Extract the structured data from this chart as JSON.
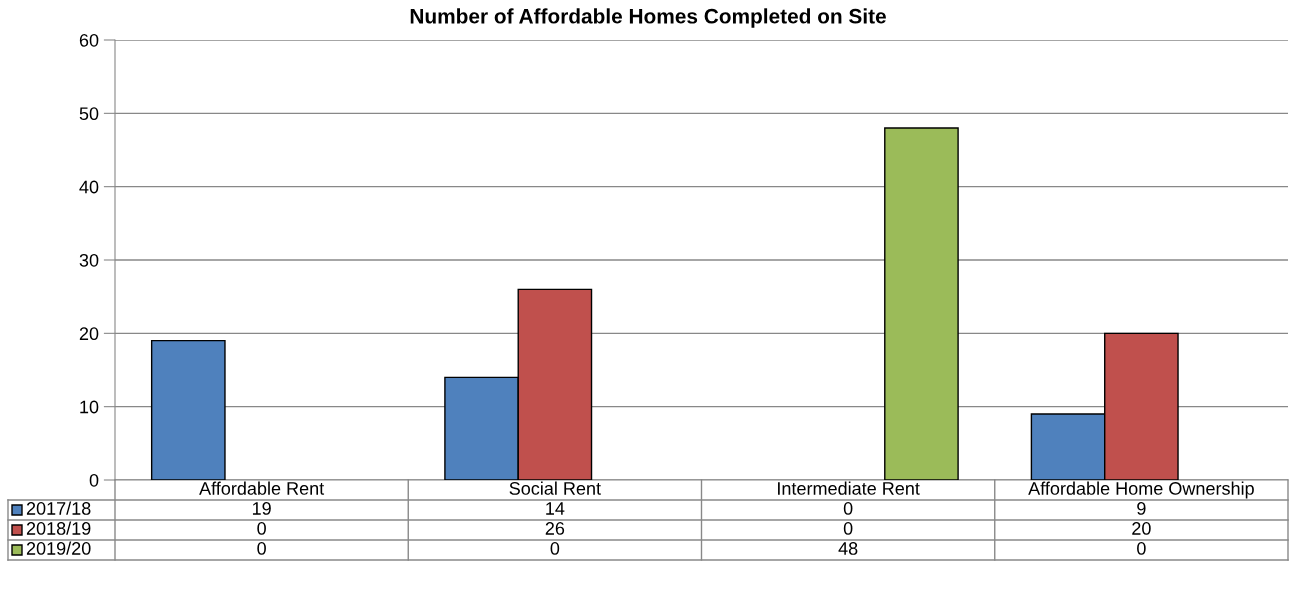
{
  "chart_data": {
    "type": "bar",
    "title": "Number of Affordable Homes Completed on Site",
    "categories": [
      "Affordable Rent",
      "Social Rent",
      "Intermediate Rent",
      "Affordable Home Ownership"
    ],
    "series": [
      {
        "name": "2017/18",
        "color": "#4f81bd",
        "values": [
          19,
          14,
          0,
          9
        ]
      },
      {
        "name": "2018/19",
        "color": "#c0504d",
        "values": [
          0,
          26,
          0,
          20
        ]
      },
      {
        "name": "2019/20",
        "color": "#9bbb59",
        "values": [
          0,
          0,
          48,
          0
        ]
      }
    ],
    "ylim": [
      0,
      60
    ],
    "yticks": [
      0,
      10,
      20,
      30,
      40,
      50,
      60
    ],
    "grid": "y",
    "data_labels": true,
    "legend": "bottom"
  }
}
